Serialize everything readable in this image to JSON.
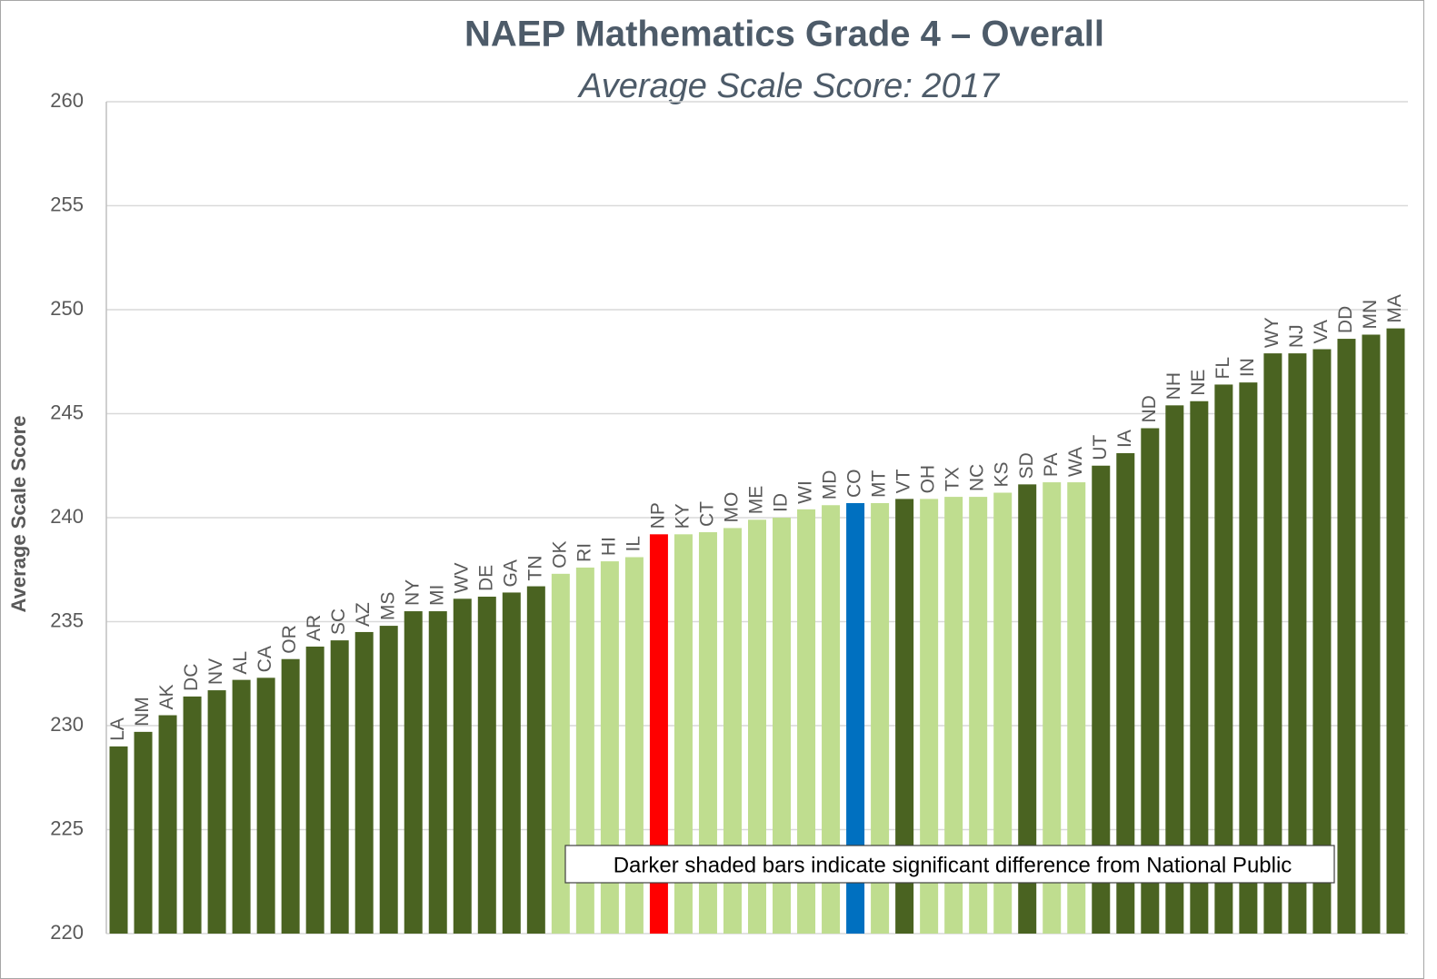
{
  "chart_data": {
    "type": "bar",
    "title": "NAEP Mathematics Grade 4 – Overall",
    "subtitle": "Average Scale Score: 2017",
    "y_label": "Average Scale Score",
    "annotation": "Darker shaded bars indicate significant difference from National Public",
    "categories": [
      "LA",
      "NM",
      "AK",
      "DC",
      "NV",
      "AL",
      "CA",
      "OR",
      "AR",
      "SC",
      "AZ",
      "MS",
      "NY",
      "MI",
      "WV",
      "DE",
      "GA",
      "TN",
      "OK",
      "RI",
      "HI",
      "IL",
      "NP",
      "KY",
      "CT",
      "MO",
      "ME",
      "ID",
      "WI",
      "MD",
      "CO",
      "MT",
      "VT",
      "OH",
      "TX",
      "NC",
      "KS",
      "SD",
      "PA",
      "WA",
      "UT",
      "IA",
      "ND",
      "NH",
      "NE",
      "FL",
      "IN",
      "WY",
      "NJ",
      "VA",
      "DD",
      "MN",
      "MA"
    ],
    "values": [
      229.0,
      229.7,
      230.5,
      231.4,
      231.7,
      232.2,
      232.3,
      233.2,
      233.8,
      234.1,
      234.5,
      234.8,
      235.5,
      235.5,
      236.1,
      236.2,
      236.4,
      236.7,
      237.3,
      237.6,
      237.9,
      238.1,
      239.2,
      239.2,
      239.3,
      239.5,
      239.9,
      240.0,
      240.4,
      240.6,
      240.7,
      240.7,
      240.9,
      240.9,
      241.0,
      241.0,
      241.2,
      241.6,
      241.7,
      241.7,
      242.5,
      243.1,
      244.3,
      245.4,
      245.6,
      246.4,
      246.5,
      247.9,
      247.9,
      248.1,
      248.6,
      248.8,
      249.1
    ],
    "colors": [
      "#4a6321",
      "#4a6321",
      "#4a6321",
      "#4a6321",
      "#4a6321",
      "#4a6321",
      "#4a6321",
      "#4a6321",
      "#4a6321",
      "#4a6321",
      "#4a6321",
      "#4a6321",
      "#4a6321",
      "#4a6321",
      "#4a6321",
      "#4a6321",
      "#4a6321",
      "#4a6321",
      "#bfdd8f",
      "#bfdd8f",
      "#bfdd8f",
      "#bfdd8f",
      "#ff0000",
      "#bfdd8f",
      "#bfdd8f",
      "#bfdd8f",
      "#bfdd8f",
      "#bfdd8f",
      "#bfdd8f",
      "#bfdd8f",
      "#0070c0",
      "#bfdd8f",
      "#4a6321",
      "#bfdd8f",
      "#bfdd8f",
      "#bfdd8f",
      "#bfdd8f",
      "#4a6321",
      "#bfdd8f",
      "#bfdd8f",
      "#4a6321",
      "#4a6321",
      "#4a6321",
      "#4a6321",
      "#4a6321",
      "#4a6321",
      "#4a6321",
      "#4a6321",
      "#4a6321",
      "#4a6321",
      "#4a6321",
      "#4a6321",
      "#4a6321"
    ],
    "ylim": [
      220,
      260
    ],
    "yticks": [
      220,
      225,
      230,
      235,
      240,
      245,
      250,
      255,
      260
    ],
    "grid": true
  }
}
